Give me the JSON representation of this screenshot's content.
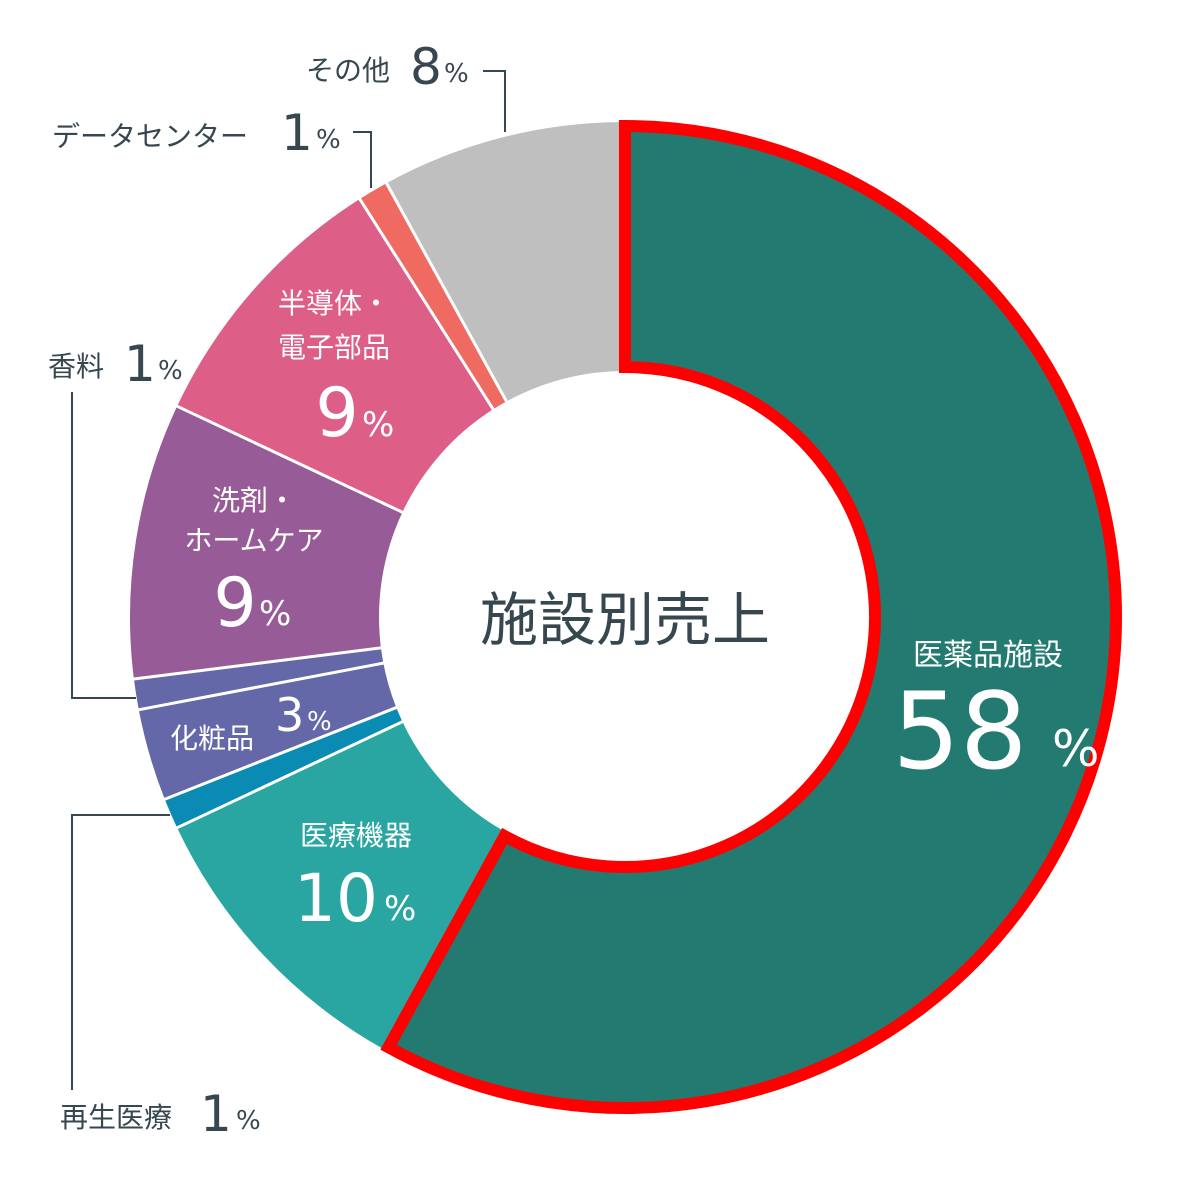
{
  "chart_data": {
    "type": "pie",
    "subtype": "donut",
    "title": "施設別売上",
    "unit": "%",
    "categories": [
      "医薬品施設",
      "医療機器",
      "再生医療",
      "化粧品",
      "香料",
      "洗剤・ホームケア",
      "半導体・電子部品",
      "データセンター",
      "その他"
    ],
    "values": [
      58,
      10,
      1,
      3,
      1,
      9,
      9,
      1,
      8
    ],
    "colors": [
      "#237a70",
      "#2aa6a2",
      "#0a8bb3",
      "#6468a8",
      "#6468a8",
      "#975b97",
      "#dd5f88",
      "#ef6a60",
      "#bfbfbf"
    ],
    "highlight": {
      "category": "医薬品施設",
      "outline_color": "#ff0000"
    },
    "legend": "none (labels placed on/around slices)"
  },
  "center_label": "施設別売上",
  "labels": {
    "pharma": {
      "name": "医薬品施設",
      "value": "58",
      "pct": "%"
    },
    "medical": {
      "name": "医療機器",
      "value": "10",
      "pct": "%"
    },
    "regen": {
      "name": "再生医療",
      "value": "1",
      "pct": "%"
    },
    "cosmetics": {
      "name": "化粧品",
      "value": "3",
      "pct": "%"
    },
    "fragrance": {
      "name": "香料",
      "value": "1",
      "pct": "%"
    },
    "detergent": {
      "name1": "洗剤・",
      "name2": "ホームケア",
      "value": "9",
      "pct": "%"
    },
    "semi": {
      "name1": "半導体・",
      "name2": "電子部品",
      "value": "9",
      "pct": "%"
    },
    "datacenter": {
      "name": "データセンター",
      "value": "1",
      "pct": "%"
    },
    "other": {
      "name": "その他",
      "value": "8",
      "pct": "%"
    }
  }
}
